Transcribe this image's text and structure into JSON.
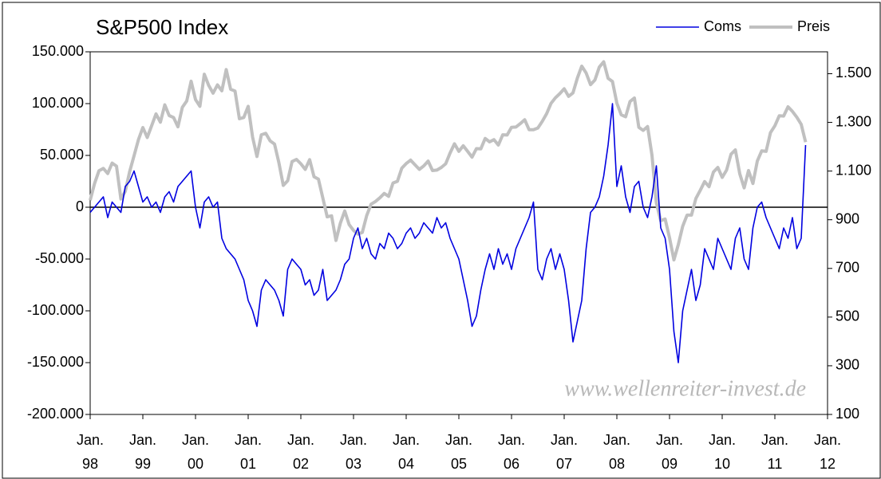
{
  "chart_data": {
    "type": "line",
    "title": "S&P500 Index",
    "watermark": "www.wellenreiter-invest.de",
    "legend": "top-right",
    "xlim": [
      "1998-01",
      "2012-01"
    ],
    "xticks": [
      {
        "value": "1998-01",
        "label": "Jan.\n98"
      },
      {
        "value": "1999-01",
        "label": "Jan.\n99"
      },
      {
        "value": "2000-01",
        "label": "Jan.\n00"
      },
      {
        "value": "2001-01",
        "label": "Jan.\n01"
      },
      {
        "value": "2002-01",
        "label": "Jan.\n02"
      },
      {
        "value": "2003-01",
        "label": "Jan.\n03"
      },
      {
        "value": "2004-01",
        "label": "Jan.\n04"
      },
      {
        "value": "2005-01",
        "label": "Jan.\n05"
      },
      {
        "value": "2006-01",
        "label": "Jan.\n06"
      },
      {
        "value": "2007-01",
        "label": "Jan.\n07"
      },
      {
        "value": "2008-01",
        "label": "Jan.\n08"
      },
      {
        "value": "2009-01",
        "label": "Jan.\n09"
      },
      {
        "value": "2010-01",
        "label": "Jan.\n10"
      },
      {
        "value": "2011-01",
        "label": "Jan.\n11"
      },
      {
        "value": "2012-01",
        "label": "Jan.\n12"
      }
    ],
    "ylim": [
      -200000,
      150000
    ],
    "yticks": [
      {
        "value": -200000,
        "label": "-200.000"
      },
      {
        "value": -150000,
        "label": "-150.000"
      },
      {
        "value": -100000,
        "label": "-100.000"
      },
      {
        "value": -50000,
        "label": "-50.000"
      },
      0,
      {
        "value": 50000,
        "label": "50.000"
      },
      {
        "value": 100000,
        "label": "100.000"
      },
      {
        "value": 150000,
        "label": "150.000"
      }
    ],
    "y2lim": [
      100,
      1590
    ],
    "y2ticks": [
      100,
      300,
      500,
      700,
      900,
      {
        "value": 1100,
        "label": "1.100"
      },
      {
        "value": 1300,
        "label": "1.300"
      },
      {
        "value": 1500,
        "label": "1.500"
      }
    ],
    "x": [
      "1998-01",
      "1998-02",
      "1998-03",
      "1998-04",
      "1998-05",
      "1998-06",
      "1998-07",
      "1998-08",
      "1998-09",
      "1998-10",
      "1998-11",
      "1998-12",
      "1999-01",
      "1999-02",
      "1999-03",
      "1999-04",
      "1999-05",
      "1999-06",
      "1999-07",
      "1999-08",
      "1999-09",
      "1999-10",
      "1999-11",
      "1999-12",
      "2000-01",
      "2000-02",
      "2000-03",
      "2000-04",
      "2000-05",
      "2000-06",
      "2000-07",
      "2000-08",
      "2000-09",
      "2000-10",
      "2000-11",
      "2000-12",
      "2001-01",
      "2001-02",
      "2001-03",
      "2001-04",
      "2001-05",
      "2001-06",
      "2001-07",
      "2001-08",
      "2001-09",
      "2001-10",
      "2001-11",
      "2001-12",
      "2002-01",
      "2002-02",
      "2002-03",
      "2002-04",
      "2002-05",
      "2002-06",
      "2002-07",
      "2002-08",
      "2002-09",
      "2002-10",
      "2002-11",
      "2002-12",
      "2003-01",
      "2003-02",
      "2003-03",
      "2003-04",
      "2003-05",
      "2003-06",
      "2003-07",
      "2003-08",
      "2003-09",
      "2003-10",
      "2003-11",
      "2003-12",
      "2004-01",
      "2004-02",
      "2004-03",
      "2004-04",
      "2004-05",
      "2004-06",
      "2004-07",
      "2004-08",
      "2004-09",
      "2004-10",
      "2004-11",
      "2004-12",
      "2005-01",
      "2005-02",
      "2005-03",
      "2005-04",
      "2005-05",
      "2005-06",
      "2005-07",
      "2005-08",
      "2005-09",
      "2005-10",
      "2005-11",
      "2005-12",
      "2006-01",
      "2006-02",
      "2006-03",
      "2006-04",
      "2006-05",
      "2006-06",
      "2006-07",
      "2006-08",
      "2006-09",
      "2006-10",
      "2006-11",
      "2006-12",
      "2007-01",
      "2007-02",
      "2007-03",
      "2007-04",
      "2007-05",
      "2007-06",
      "2007-07",
      "2007-08",
      "2007-09",
      "2007-10",
      "2007-11",
      "2007-12",
      "2008-01",
      "2008-02",
      "2008-03",
      "2008-04",
      "2008-05",
      "2008-06",
      "2008-07",
      "2008-08",
      "2008-09",
      "2008-10",
      "2008-11",
      "2008-12",
      "2009-01",
      "2009-02",
      "2009-03",
      "2009-04",
      "2009-05",
      "2009-06",
      "2009-07",
      "2009-08",
      "2009-09",
      "2009-10",
      "2009-11",
      "2009-12",
      "2010-01",
      "2010-02",
      "2010-03",
      "2010-04",
      "2010-05",
      "2010-06",
      "2010-07",
      "2010-08",
      "2010-09",
      "2010-10",
      "2010-11",
      "2010-12",
      "2011-01",
      "2011-02",
      "2011-03",
      "2011-04",
      "2011-05",
      "2011-06",
      "2011-07",
      "2011-08"
    ],
    "series": [
      {
        "name": "Preis",
        "color": "#c0c0c0",
        "axis": "y2",
        "values": [
          980,
          1049,
          1101,
          1111,
          1090,
          1133,
          1120,
          985,
          1017,
          1098,
          1163,
          1229,
          1279,
          1238,
          1286,
          1335,
          1301,
          1372,
          1328,
          1320,
          1282,
          1362,
          1388,
          1469,
          1394,
          1366,
          1498,
          1452,
          1420,
          1454,
          1430,
          1517,
          1436,
          1429,
          1315,
          1320,
          1366,
          1240,
          1160,
          1249,
          1255,
          1224,
          1211,
          1134,
          1041,
          1060,
          1139,
          1148,
          1130,
          1107,
          1147,
          1077,
          1067,
          990,
          912,
          916,
          815,
          886,
          936,
          880,
          856,
          841,
          848,
          917,
          964,
          975,
          990,
          1008,
          996,
          1051,
          1058,
          1112,
          1131,
          1145,
          1126,
          1107,
          1121,
          1141,
          1102,
          1104,
          1115,
          1130,
          1174,
          1212,
          1181,
          1204,
          1181,
          1157,
          1192,
          1191,
          1234,
          1220,
          1229,
          1207,
          1249,
          1248,
          1280,
          1281,
          1295,
          1311,
          1270,
          1270,
          1277,
          1304,
          1336,
          1378,
          1401,
          1418,
          1438,
          1407,
          1421,
          1482,
          1531,
          1503,
          1455,
          1474,
          1527,
          1549,
          1481,
          1468,
          1379,
          1331,
          1323,
          1386,
          1400,
          1280,
          1267,
          1283,
          1165,
          969,
          896,
          903,
          826,
          735,
          798,
          873,
          919,
          919,
          987,
          1021,
          1057,
          1036,
          1096,
          1115,
          1074,
          1104,
          1169,
          1187,
          1089,
          1031,
          1102,
          1049,
          1141,
          1183,
          1181,
          1258,
          1286,
          1327,
          1326,
          1364,
          1345,
          1321,
          1292,
          1219
        ]
      },
      {
        "name": "Coms",
        "color": "#0000e0",
        "values": [
          -5000,
          0,
          5000,
          10000,
          -10000,
          5000,
          0,
          -5000,
          20000,
          25000,
          35000,
          20000,
          5000,
          10000,
          0,
          5000,
          -5000,
          10000,
          15000,
          5000,
          20000,
          25000,
          30000,
          35000,
          0,
          -20000,
          5000,
          10000,
          0,
          5000,
          -30000,
          -40000,
          -45000,
          -50000,
          -60000,
          -70000,
          -90000,
          -100000,
          -115000,
          -80000,
          -70000,
          -75000,
          -80000,
          -90000,
          -105000,
          -60000,
          -50000,
          -55000,
          -60000,
          -75000,
          -70000,
          -85000,
          -80000,
          -60000,
          -90000,
          -85000,
          -80000,
          -70000,
          -55000,
          -50000,
          -30000,
          -20000,
          -40000,
          -30000,
          -45000,
          -50000,
          -35000,
          -40000,
          -25000,
          -30000,
          -40000,
          -35000,
          -25000,
          -20000,
          -30000,
          -25000,
          -15000,
          -20000,
          -25000,
          -10000,
          -20000,
          -15000,
          -30000,
          -40000,
          -50000,
          -70000,
          -90000,
          -115000,
          -105000,
          -80000,
          -60000,
          -45000,
          -60000,
          -40000,
          -55000,
          -45000,
          -60000,
          -40000,
          -30000,
          -20000,
          -10000,
          5000,
          -60000,
          -70000,
          -50000,
          -40000,
          -60000,
          -45000,
          -60000,
          -90000,
          -130000,
          -110000,
          -90000,
          -40000,
          -5000,
          0,
          10000,
          30000,
          60000,
          100000,
          20000,
          40000,
          10000,
          -5000,
          20000,
          25000,
          0,
          -10000,
          10000,
          40000,
          -20000,
          -30000,
          -60000,
          -120000,
          -150000,
          -100000,
          -80000,
          -60000,
          -90000,
          -75000,
          -40000,
          -50000,
          -60000,
          -30000,
          -40000,
          -50000,
          -60000,
          -30000,
          -20000,
          -50000,
          -60000,
          -20000,
          0,
          5000,
          -10000,
          -20000,
          -30000,
          -40000,
          -20000,
          -30000,
          -10000,
          -40000,
          -30000,
          60000
        ]
      }
    ]
  }
}
